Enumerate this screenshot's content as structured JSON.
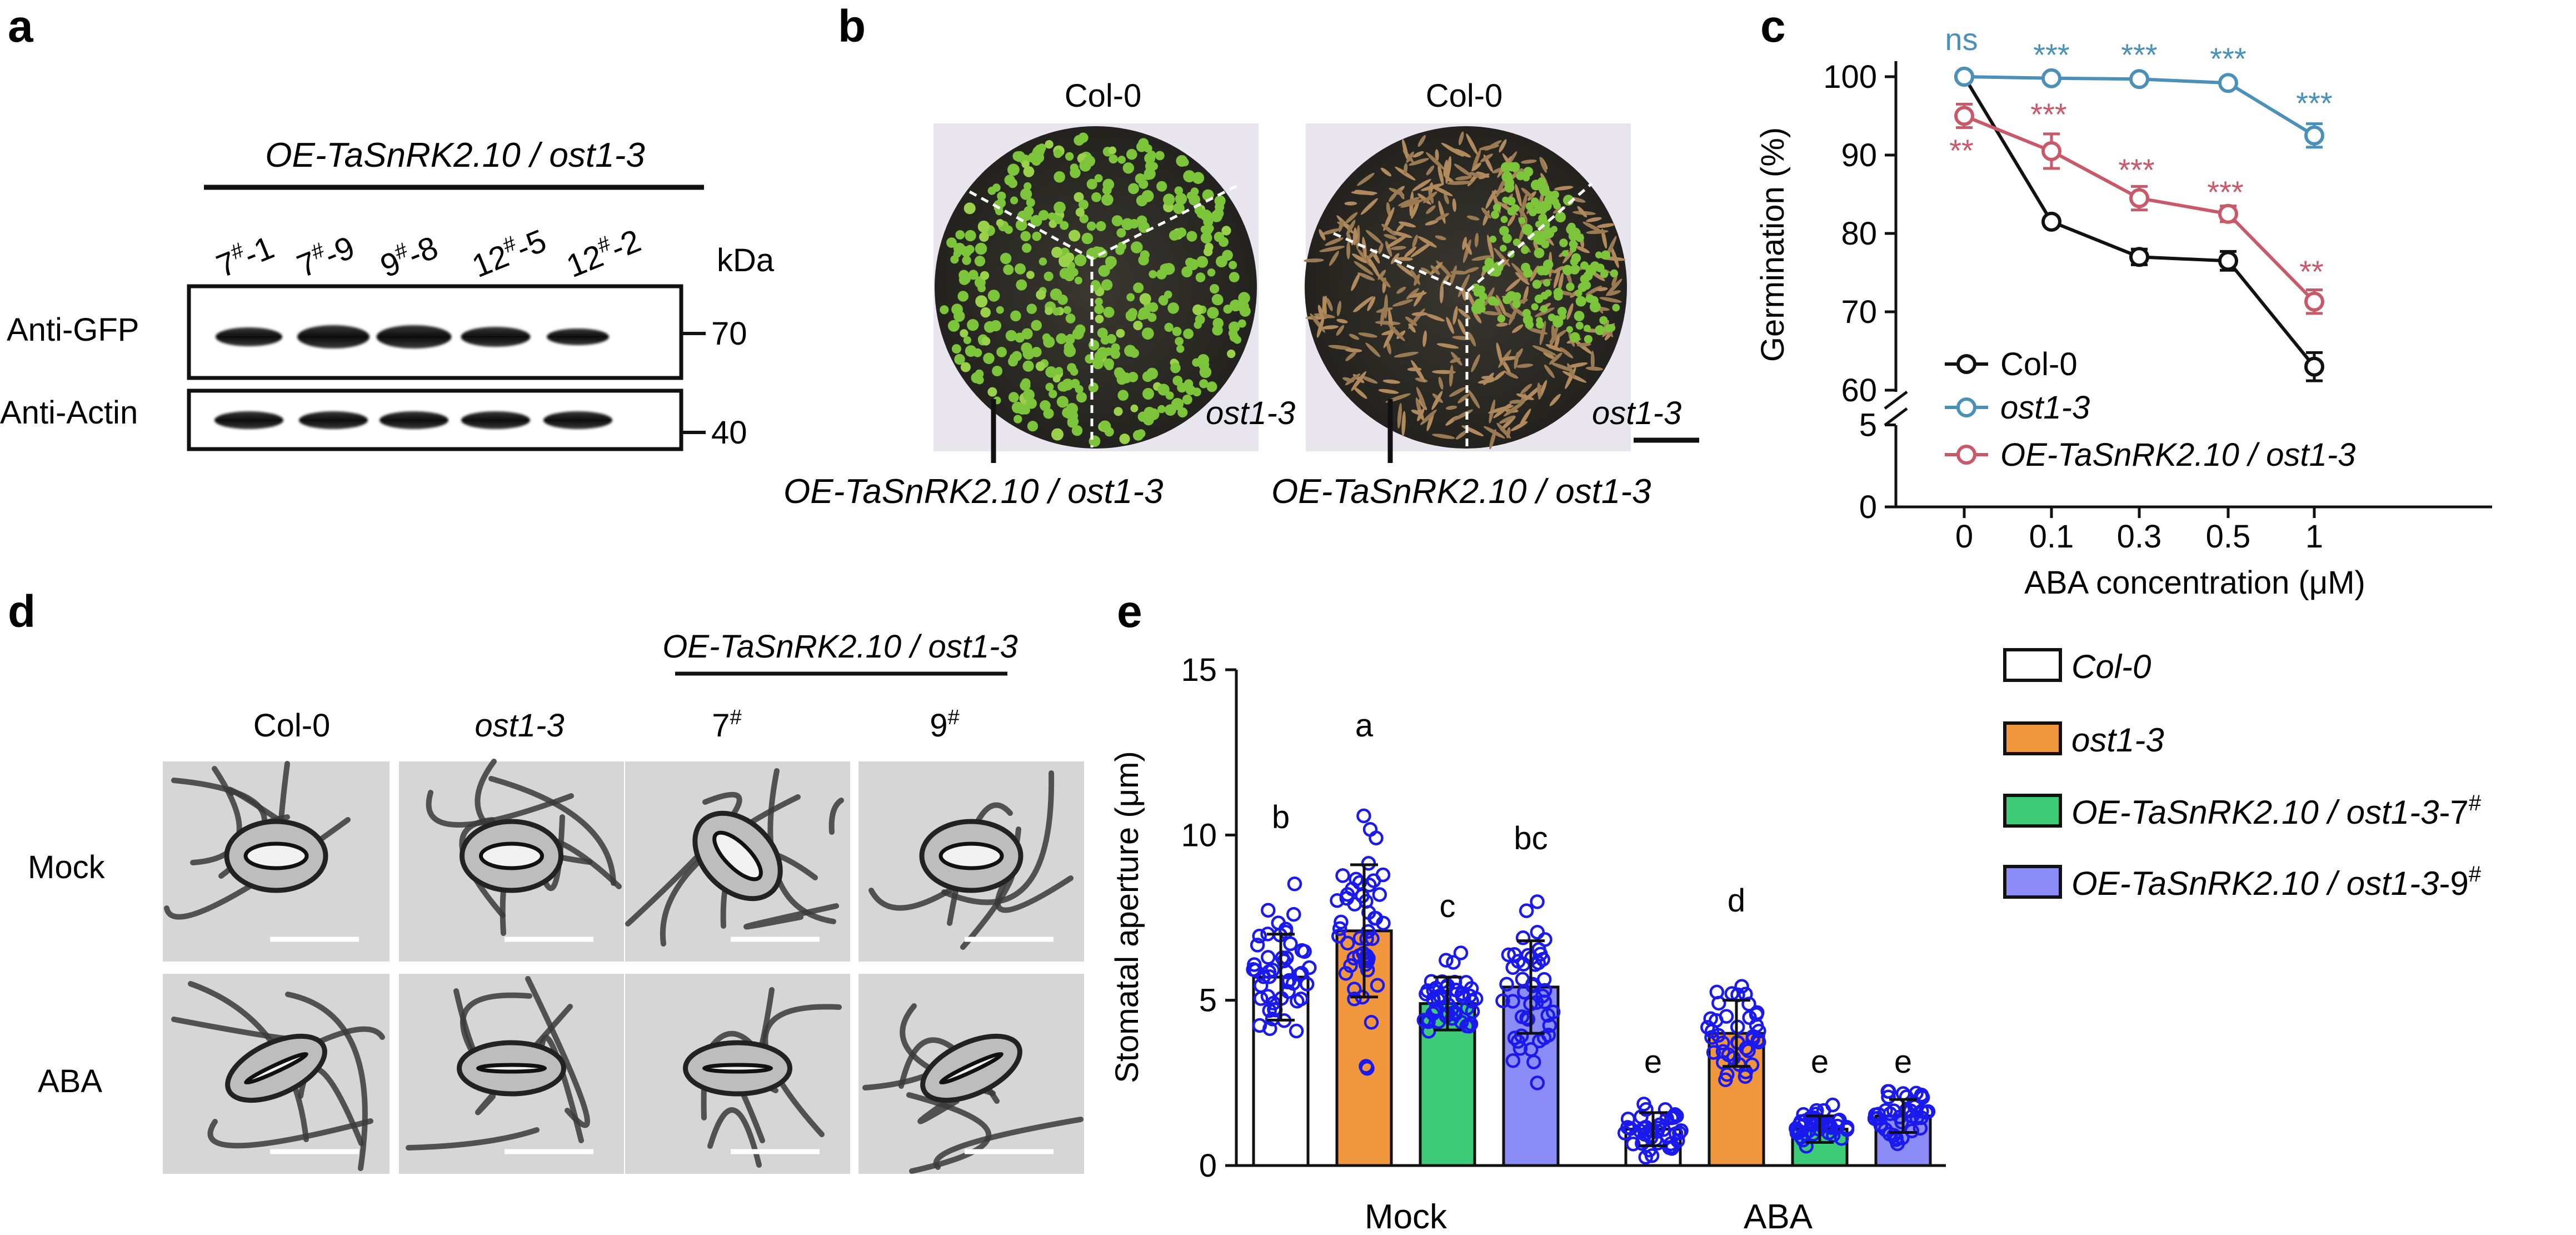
{
  "panel_letters": {
    "a": "a",
    "b": "b",
    "c": "c",
    "d": "d",
    "e": "e"
  },
  "colors": {
    "col0": "#111111",
    "ost13": "#4a90b8",
    "oe": "#c95868",
    "bar_orange": "#f0963c",
    "bar_green": "#3dcb78",
    "bar_purple": "#8c8cf8",
    "dots": "#1a1aee",
    "sig_blue": "#4a90b8",
    "sig_red": "#c95868"
  },
  "panel_a": {
    "header": "OE-TaSnRK2.10 / ost1-3",
    "lanes": [
      {
        "num": "7",
        "sup": "#",
        "rest": "-1"
      },
      {
        "num": "7",
        "sup": "#",
        "rest": "-9"
      },
      {
        "num": "9",
        "sup": "#",
        "rest": "-8"
      },
      {
        "num": "12",
        "sup": "#",
        "rest": "-5"
      },
      {
        "num": "12",
        "sup": "#",
        "rest": "-2"
      }
    ],
    "kda": "kDa",
    "rows": [
      {
        "label": "Anti-GFP",
        "marker": "70"
      },
      {
        "label": "Anti-Actin",
        "marker": "40"
      }
    ]
  },
  "panel_b": {
    "plates": [
      {
        "top": "Col-0",
        "right": "ost1-3",
        "bottom": "OE-TaSnRK2.10 / ost1-3"
      },
      {
        "top": "Col-0",
        "right": "ost1-3",
        "bottom": "OE-TaSnRK2.10 / ost1-3"
      }
    ]
  },
  "chart_data": [
    {
      "id": "panel_c",
      "type": "line",
      "title": "",
      "xlabel": "ABA concentration (μM)",
      "ylabel": "Germination (%)",
      "categories": [
        "0",
        "0.1",
        "0.3",
        "0.5",
        "1"
      ],
      "y_ticks_upper": [
        "60",
        "70",
        "80",
        "90",
        "100"
      ],
      "y_ticks_lower": [
        "0",
        "5"
      ],
      "ylim_upper": [
        60,
        100
      ],
      "ylim_lower": [
        0,
        6
      ],
      "series": [
        {
          "name": "Col-0",
          "values": [
            100,
            81.5,
            77,
            76.5,
            63
          ],
          "errors": [
            0,
            0.5,
            1.0,
            1.2,
            1.8
          ]
        },
        {
          "name": "ost1-3",
          "values": [
            100,
            99.8,
            99.7,
            99.2,
            92.5
          ],
          "errors": [
            0,
            0.4,
            0.4,
            0.5,
            1.5
          ]
        },
        {
          "name": "OE-TaSnRK2.10 / ost1-3",
          "values": [
            95,
            90.5,
            84.5,
            82.5,
            71.3
          ],
          "errors": [
            1.5,
            2.2,
            1.5,
            1.0,
            1.5
          ]
        }
      ],
      "significance": {
        "ost1-3": [
          "ns",
          "***",
          "***",
          "***",
          "***"
        ],
        "OE-TaSnRK2.10 / ost1-3": [
          "**",
          "***",
          "***",
          "***",
          "**"
        ]
      }
    },
    {
      "id": "panel_e",
      "type": "bar",
      "title": "",
      "xlabel": "",
      "ylabel": "Stomatal aperture (μm)",
      "groups": [
        "Mock",
        "ABA"
      ],
      "y_ticks": [
        "0",
        "5",
        "10",
        "15"
      ],
      "ylim": [
        0,
        15
      ],
      "series": [
        {
          "name": "Col-0",
          "values": [
            5.7,
            1.1
          ],
          "errors": [
            1.3,
            0.5
          ],
          "letters": [
            "b",
            "e"
          ]
        },
        {
          "name": "ost1-3",
          "values": [
            7.1,
            4.0
          ],
          "errors": [
            2.0,
            1.0
          ],
          "letters": [
            "a",
            "d"
          ]
        },
        {
          "name": "OE-TaSnRK2.10 / ost1-3-7#",
          "values": [
            4.9,
            1.1
          ],
          "errors": [
            0.8,
            0.4
          ],
          "letters": [
            "c",
            "e"
          ]
        },
        {
          "name": "OE-TaSnRK2.10 / ost1-3-9#",
          "values": [
            5.4,
            1.5
          ],
          "errors": [
            1.4,
            0.5
          ],
          "letters": [
            "bc",
            "e"
          ]
        }
      ]
    }
  ],
  "panel_c_legend": [
    "Col-0",
    "ost1-3",
    "OE-TaSnRK2.10 / ost1-3"
  ],
  "panel_d": {
    "header": "OE-TaSnRK2.10 / ost1-3",
    "columns": [
      {
        "text": "Col-0",
        "sup": ""
      },
      {
        "text": "ost1-3",
        "sup": ""
      },
      {
        "text": "7",
        "sup": "#"
      },
      {
        "text": "9",
        "sup": "#"
      }
    ],
    "rows": [
      "Mock",
      "ABA"
    ]
  },
  "panel_e_legend": [
    {
      "base": "Col-0",
      "suffix": "",
      "sup": ""
    },
    {
      "base": "ost1-3",
      "suffix": "",
      "sup": ""
    },
    {
      "base": "OE-TaSnRK2.10 / ost1-3",
      "suffix": "-7",
      "sup": "#"
    },
    {
      "base": "OE-TaSnRK2.10 / ost1-3",
      "suffix": "-9",
      "sup": "#"
    }
  ]
}
